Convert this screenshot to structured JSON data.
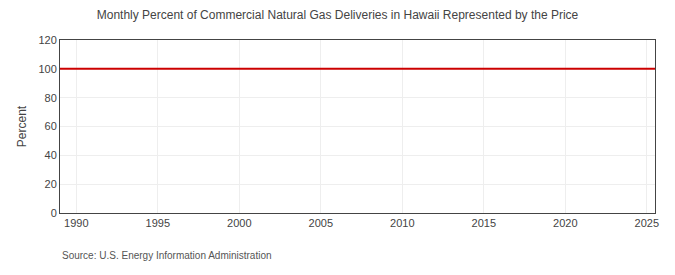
{
  "chart_data": {
    "type": "line",
    "title": "Monthly Percent of Commercial Natural Gas Deliveries in Hawaii Represented by the Price",
    "y_label": "Percent",
    "annotations": [
      "Source: U.S. Energy Information Administration"
    ],
    "x": [
      1989.0,
      2025.5
    ],
    "values": [
      100,
      100
    ],
    "color": "#cc0000",
    "xlim": [
      1989.0,
      2025.5
    ],
    "xticks": [
      1990,
      1995,
      2000,
      2005,
      2010,
      2015,
      2020,
      2025
    ],
    "ylim": [
      0,
      120
    ],
    "yticks": [
      0,
      20,
      40,
      60,
      80,
      100,
      120
    ],
    "grid": true
  }
}
